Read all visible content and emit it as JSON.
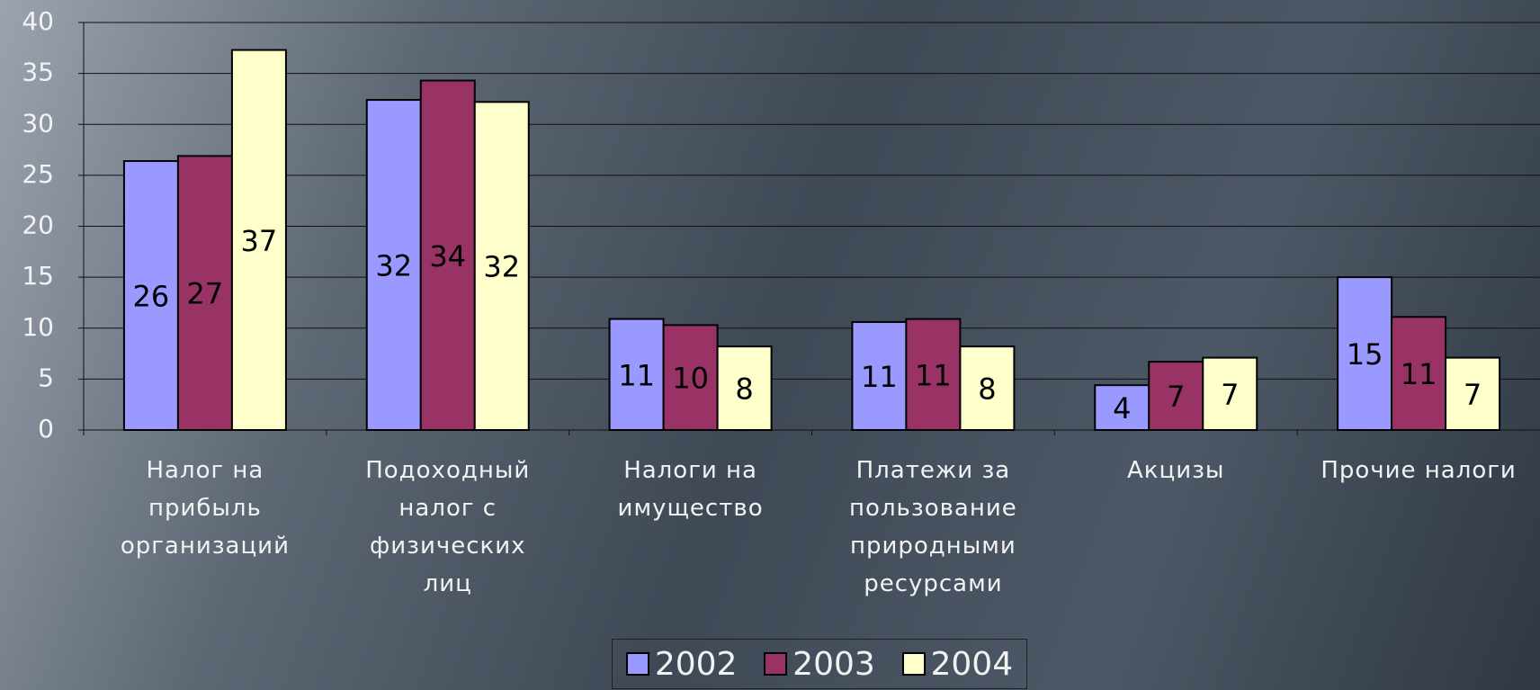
{
  "chart_data": {
    "type": "bar",
    "categories": [
      "Налог на прибыль организаций",
      "Подоходный налог с физических лиц",
      "Налоги на имущество",
      "Платежи за пользование природными ресурсами",
      "Акцизы",
      "Прочие налоги"
    ],
    "series": [
      {
        "name": "2002",
        "color": "#9999ff",
        "values": [
          26.4,
          32.4,
          10.9,
          10.6,
          4.4,
          15.0
        ],
        "value_labels": [
          "26",
          "32",
          "11",
          "11",
          "4",
          "15"
        ]
      },
      {
        "name": "2003",
        "color": "#993366",
        "values": [
          26.9,
          34.3,
          10.3,
          10.9,
          6.7,
          11.1
        ],
        "value_labels": [
          "27",
          "34",
          "10",
          "11",
          "7",
          "11"
        ]
      },
      {
        "name": "2004",
        "color": "#ffffcc",
        "values": [
          37.3,
          32.2,
          8.2,
          8.2,
          7.1,
          7.1
        ],
        "value_labels": [
          "37",
          "32",
          "8",
          "8",
          "7",
          "7"
        ]
      }
    ],
    "ylim": [
      0,
      40
    ],
    "yticks": [
      0,
      5,
      10,
      15,
      20,
      25,
      30,
      35,
      40
    ],
    "grid": true,
    "legend": "bottom"
  }
}
